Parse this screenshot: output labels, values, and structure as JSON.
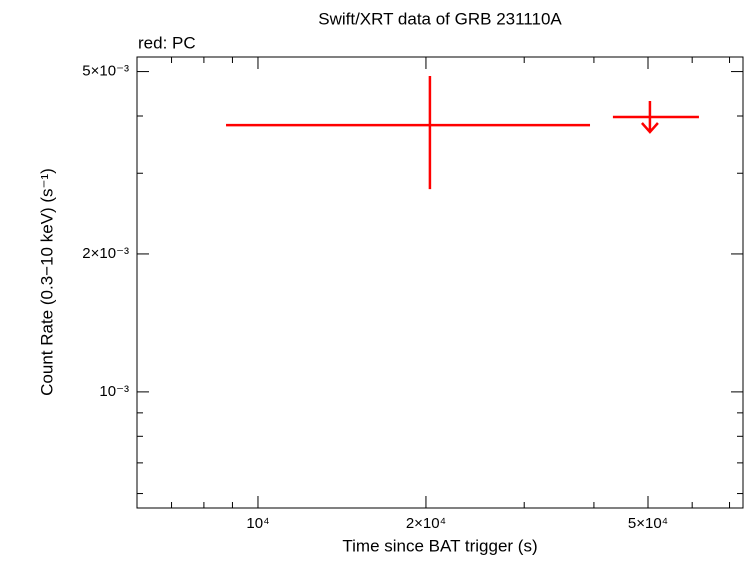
{
  "chart_data": {
    "type": "scatter",
    "title": "Swift/XRT data of GRB 231110A",
    "xlabel": "Time since BAT trigger (s)",
    "ylabel": "Count Rate (0.3−10 keV) (s⁻¹)",
    "xscale": "log",
    "yscale": "log",
    "xlim": [
      6070,
      74000
    ],
    "ylim": [
      0.000558,
      0.00538
    ],
    "xticks": [
      {
        "value": 10000,
        "label": "10⁴"
      },
      {
        "value": 20000,
        "label": "2×10⁴"
      },
      {
        "value": 50000,
        "label": "5×10⁴"
      }
    ],
    "xticks_minor": [
      7000,
      8000,
      9000,
      30000,
      40000,
      60000,
      70000
    ],
    "yticks": [
      {
        "value": 0.001,
        "label": "10⁻³"
      },
      {
        "value": 0.002,
        "label": "2×10⁻³"
      },
      {
        "value": 0.005,
        "label": "5×10⁻³"
      }
    ],
    "yticks_minor": [
      0.0006,
      0.0007,
      0.0008,
      0.0009,
      0.003,
      0.004
    ],
    "series": [
      {
        "name": "red: PC",
        "color": "#ff0000",
        "x": [
          20330,
          50400
        ],
        "x_low": [
          8765,
          43260
        ],
        "x_high": [
          39360,
          61700
        ],
        "y": [
          0.00382,
          0.00398
        ],
        "y_low": [
          0.00277,
          null
        ],
        "y_high": [
          0.00489,
          null
        ],
        "upper_limit": [
          false,
          true
        ]
      }
    ]
  }
}
